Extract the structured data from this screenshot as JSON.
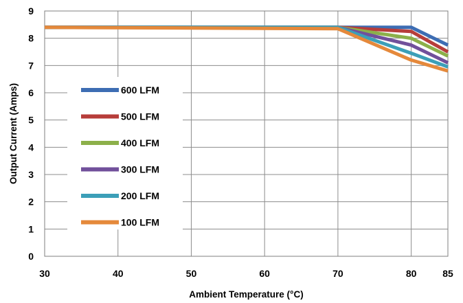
{
  "chart_data": {
    "type": "line",
    "xlabel": "Ambient Temperature (°C)",
    "ylabel": "Output Current (Amps)",
    "xlim": [
      30,
      85
    ],
    "ylim": [
      0,
      9
    ],
    "x_ticks": [
      30,
      40,
      50,
      60,
      70,
      80,
      85
    ],
    "y_ticks": [
      0,
      1,
      2,
      3,
      4,
      5,
      6,
      7,
      8,
      9
    ],
    "grid": true,
    "legend_placement": "left",
    "x": [
      30,
      70,
      80,
      85
    ],
    "series": [
      {
        "name": "600 LFM",
        "color": "#3d6db3",
        "values": [
          8.4,
          8.4,
          8.4,
          7.75
        ]
      },
      {
        "name": "500 LFM",
        "color": "#b73d3a",
        "values": [
          8.4,
          8.4,
          8.25,
          7.5
        ]
      },
      {
        "name": "400 LFM",
        "color": "#8cb04a",
        "values": [
          8.4,
          8.4,
          8.0,
          7.35
        ]
      },
      {
        "name": "300 LFM",
        "color": "#71509b",
        "values": [
          8.4,
          8.4,
          7.75,
          7.1
        ]
      },
      {
        "name": "200 LFM",
        "color": "#3c9fb8",
        "values": [
          8.4,
          8.4,
          7.45,
          6.95
        ]
      },
      {
        "name": "100 LFM",
        "color": "#e5893b",
        "values": [
          8.4,
          8.35,
          7.2,
          6.8
        ]
      }
    ]
  }
}
